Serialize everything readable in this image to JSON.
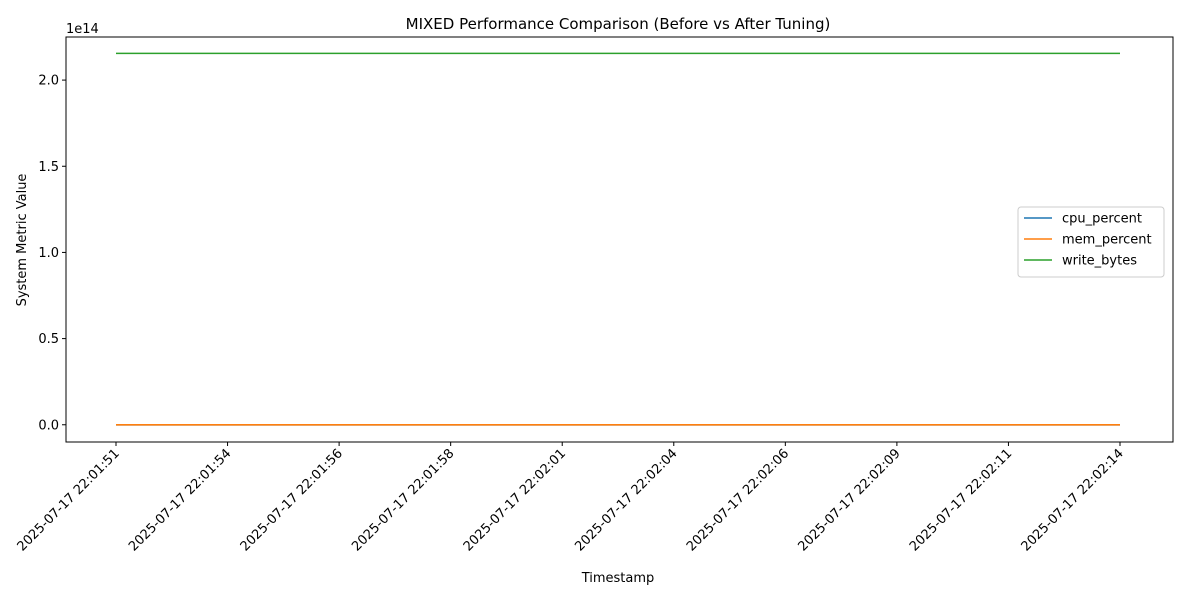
{
  "chart_data": {
    "type": "line",
    "title": "MIXED Performance Comparison (Before vs After Tuning)",
    "xlabel": "Timestamp",
    "ylabel": "System Metric Value",
    "y_offset_text": "1e14",
    "y_scale_multiplier": 100000000000000.0,
    "ylim": [
      -0.1,
      2.25
    ],
    "yticks": [
      0.0,
      0.5,
      1.0,
      1.5,
      2.0
    ],
    "ytick_labels": [
      "0.0",
      "0.5",
      "1.0",
      "1.5",
      "2.0"
    ],
    "x_ticks": [
      "2025-07-17 22:01:51",
      "2025-07-17 22:01:54",
      "2025-07-17 22:01:56",
      "2025-07-17 22:01:58",
      "2025-07-17 22:02:01",
      "2025-07-17 22:02:04",
      "2025-07-17 22:02:06",
      "2025-07-17 22:02:09",
      "2025-07-17 22:02:11",
      "2025-07-17 22:02:14"
    ],
    "x": [
      "2025-07-17 22:01:51",
      "2025-07-17 22:02:14"
    ],
    "grid": false,
    "legend_position": "center-right",
    "series": [
      {
        "name": "cpu_percent",
        "color": "#1f77b4",
        "values": [
          0.0,
          0.0
        ]
      },
      {
        "name": "mem_percent",
        "color": "#ff7f0e",
        "values": [
          0.0,
          0.0
        ]
      },
      {
        "name": "write_bytes",
        "color": "#2ca02c",
        "values": [
          2.155,
          2.155
        ]
      }
    ]
  }
}
